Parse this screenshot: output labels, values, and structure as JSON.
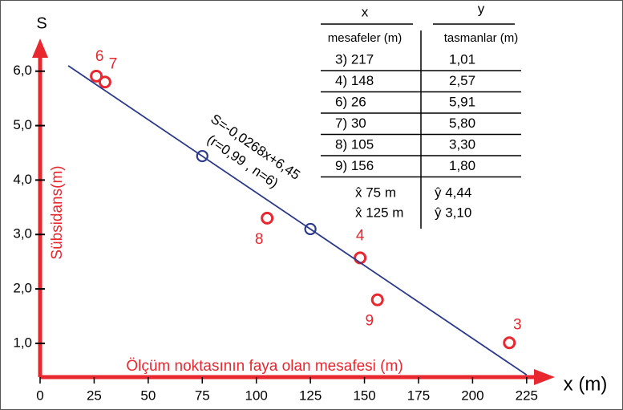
{
  "chart_data": {
    "type": "scatter",
    "y_axis_symbol": "S",
    "y_label": "Sübsidans(m)",
    "x_axis_symbol": "x (m)",
    "x_label": "Ölçüm noktasının faya olan mesafesi (m)",
    "xlim": [
      0,
      237
    ],
    "ylim": [
      0.38,
      6.6
    ],
    "xticks": [
      0,
      25,
      50,
      75,
      100,
      125,
      150,
      175,
      200,
      225
    ],
    "yticks": [
      {
        "value": 1,
        "label": "1,0"
      },
      {
        "value": 2,
        "label": "2,0"
      },
      {
        "value": 3,
        "label": "3,0"
      },
      {
        "value": 4,
        "label": "4,0"
      },
      {
        "value": 5,
        "label": "5,0"
      },
      {
        "value": 6,
        "label": "6,0"
      }
    ],
    "series": [
      {
        "kind": "points",
        "color": "#e8282e",
        "x": [
          217,
          148,
          26,
          30,
          105,
          156
        ],
        "values": [
          1.01,
          2.57,
          5.91,
          5.8,
          3.3,
          1.8
        ],
        "point_labels": [
          "3",
          "4",
          "6",
          "7",
          "8",
          "9"
        ]
      },
      {
        "kind": "points",
        "color": "#2b3a8c",
        "x": [
          75,
          125
        ],
        "values": [
          4.44,
          3.1
        ]
      },
      {
        "kind": "line",
        "color": "#2b3a8c",
        "x": [
          13,
          225
        ],
        "values": [
          6.1,
          0.42
        ]
      }
    ],
    "equation": "S=-0,0268x+6,45",
    "equation_stats": "(r=0,99 , n=6)",
    "table": {
      "headers": [
        "x",
        "y"
      ],
      "subheaders": [
        "mesafeler (m)",
        "tasmanlar (m)"
      ],
      "rows": [
        [
          "3) 217",
          "1,01"
        ],
        [
          "4) 148",
          "2,57"
        ],
        [
          "6) 26",
          "5,91"
        ],
        [
          "7) 30",
          "5,80"
        ],
        [
          "8) 105",
          "3,30"
        ],
        [
          "9) 156",
          "1,80"
        ]
      ],
      "estimates": [
        [
          "x̂ 75 m",
          "ŷ 4,44"
        ],
        [
          "x̂ 125 m",
          "ŷ 3,10"
        ]
      ]
    }
  }
}
